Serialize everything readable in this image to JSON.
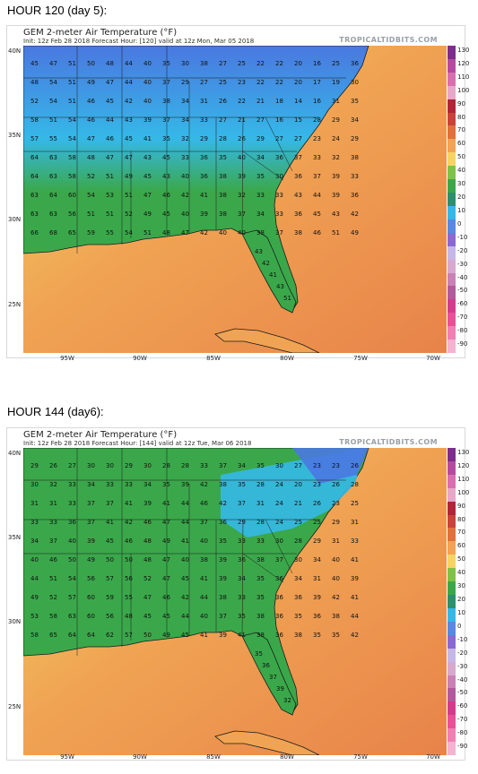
{
  "colors": {
    "ocean_warm": "#e8834a",
    "ocean_mid": "#f0a453",
    "coast_yellow": "#f1d565",
    "land_green": "#3aa84a",
    "cold_cyan": "#35b8e8",
    "cold_blue": "#4a78e0",
    "border": "#1a1a1a"
  },
  "colorbar": {
    "ticks": [
      "130",
      "120",
      "110",
      "100",
      "90",
      "80",
      "70",
      "60",
      "50",
      "40",
      "30",
      "20",
      "10",
      "0",
      "-10",
      "-20",
      "-30",
      "-40",
      "-50",
      "-60",
      "-70",
      "-80",
      "-90"
    ],
    "colors": [
      "#7d2d8d",
      "#b54ba0",
      "#d86fb0",
      "#e7a7c9",
      "#b02537",
      "#c9433a",
      "#e0703c",
      "#f2a353",
      "#f5d464",
      "#7fc249",
      "#3aa84a",
      "#2d8f6d",
      "#35b8e8",
      "#5a87e3",
      "#8a69d2",
      "#c5b8e8",
      "#d7a9cf",
      "#c981b6",
      "#b15a9e",
      "#d33c8d",
      "#e95098",
      "#f07fb4",
      "#f4b3d0"
    ]
  },
  "axes": {
    "y_labels": [
      "40N",
      "35N",
      "30N",
      "25N"
    ],
    "x_labels": [
      "95W",
      "90W",
      "85W",
      "80W",
      "75W",
      "70W"
    ]
  },
  "panels": [
    {
      "heading": "HOUR 120 (day 5):",
      "title": "GEM 2-meter Air Temperature (°F)",
      "subtitle": "Init: 12z Feb 28 2018   Forecast Hour: [120]   valid at 12z Mon, Mar 05 2018",
      "brand": "TROPICALTIDBITS.COM",
      "station_rows": [
        [
          "45",
          "47",
          "51",
          "50",
          "48",
          "44",
          "40",
          "35",
          "30",
          "38",
          "27",
          "25",
          "22",
          "22",
          "20",
          "16",
          "25",
          "36"
        ],
        [
          "48",
          "54",
          "51",
          "49",
          "47",
          "44",
          "40",
          "37",
          "29",
          "27",
          "25",
          "23",
          "22",
          "22",
          "20",
          "17",
          "19",
          "30"
        ],
        [
          "52",
          "54",
          "51",
          "46",
          "45",
          "42",
          "40",
          "38",
          "34",
          "31",
          "26",
          "22",
          "21",
          "18",
          "14",
          "16",
          "31",
          "35"
        ],
        [
          "58",
          "51",
          "54",
          "46",
          "44",
          "43",
          "39",
          "37",
          "34",
          "33",
          "27",
          "21",
          "27",
          "16",
          "15",
          "28",
          "29",
          "34"
        ],
        [
          "57",
          "55",
          "54",
          "47",
          "46",
          "45",
          "41",
          "35",
          "32",
          "29",
          "28",
          "26",
          "29",
          "27",
          "27",
          "23",
          "24",
          "29"
        ],
        [
          "64",
          "63",
          "58",
          "48",
          "47",
          "47",
          "43",
          "45",
          "33",
          "36",
          "35",
          "40",
          "34",
          "36",
          "37",
          "33",
          "32",
          "38"
        ],
        [
          "64",
          "63",
          "58",
          "52",
          "51",
          "49",
          "45",
          "43",
          "40",
          "36",
          "38",
          "39",
          "35",
          "30",
          "36",
          "37",
          "39",
          "33"
        ],
        [
          "63",
          "64",
          "60",
          "54",
          "53",
          "51",
          "47",
          "46",
          "42",
          "41",
          "38",
          "32",
          "33",
          "33",
          "43",
          "44",
          "39",
          "36"
        ],
        [
          "63",
          "63",
          "56",
          "51",
          "51",
          "52",
          "49",
          "45",
          "40",
          "39",
          "38",
          "37",
          "34",
          "33",
          "36",
          "45",
          "43",
          "42"
        ],
        [
          "66",
          "68",
          "65",
          "59",
          "55",
          "54",
          "51",
          "48",
          "47",
          "42",
          "40",
          "40",
          "38",
          "37",
          "38",
          "46",
          "51",
          "49"
        ]
      ],
      "florida_labels": [
        "43",
        "42",
        "41",
        "43",
        "51"
      ]
    },
    {
      "heading": "HOUR 144 (day6):",
      "title": "GEM 2-meter Air Temperature (°F)",
      "subtitle": "Init: 12z Feb 28 2018   Forecast Hour: [144]   valid at 12z Tue, Mar 06 2018",
      "brand": "TROPICALTIDBITS.COM",
      "station_rows": [
        [
          "29",
          "26",
          "27",
          "30",
          "30",
          "29",
          "30",
          "28",
          "28",
          "33",
          "37",
          "34",
          "35",
          "30",
          "27",
          "23",
          "23",
          "26"
        ],
        [
          "30",
          "32",
          "33",
          "34",
          "33",
          "33",
          "34",
          "35",
          "39",
          "42",
          "38",
          "35",
          "28",
          "24",
          "20",
          "23",
          "26",
          "28"
        ],
        [
          "31",
          "31",
          "33",
          "37",
          "37",
          "41",
          "39",
          "41",
          "44",
          "46",
          "42",
          "37",
          "31",
          "24",
          "21",
          "26",
          "23",
          "25"
        ],
        [
          "33",
          "33",
          "36",
          "37",
          "41",
          "42",
          "46",
          "47",
          "44",
          "37",
          "36",
          "29",
          "28",
          "24",
          "25",
          "25",
          "29",
          "31"
        ],
        [
          "34",
          "37",
          "40",
          "39",
          "45",
          "46",
          "48",
          "49",
          "41",
          "40",
          "35",
          "33",
          "33",
          "30",
          "28",
          "29",
          "31",
          "33"
        ],
        [
          "40",
          "46",
          "50",
          "49",
          "50",
          "50",
          "48",
          "47",
          "40",
          "38",
          "39",
          "36",
          "38",
          "37",
          "30",
          "34",
          "40",
          "41"
        ],
        [
          "44",
          "51",
          "54",
          "56",
          "57",
          "56",
          "52",
          "47",
          "45",
          "41",
          "39",
          "34",
          "35",
          "36",
          "34",
          "31",
          "40",
          "39"
        ],
        [
          "49",
          "52",
          "57",
          "60",
          "59",
          "55",
          "47",
          "46",
          "42",
          "44",
          "38",
          "33",
          "35",
          "36",
          "36",
          "39",
          "42",
          "41"
        ],
        [
          "53",
          "58",
          "63",
          "60",
          "56",
          "48",
          "45",
          "45",
          "44",
          "40",
          "37",
          "35",
          "38",
          "36",
          "35",
          "36",
          "38",
          "44"
        ],
        [
          "58",
          "65",
          "64",
          "64",
          "62",
          "57",
          "50",
          "49",
          "45",
          "41",
          "39",
          "41",
          "38",
          "36",
          "38",
          "35",
          "35",
          "42"
        ]
      ],
      "florida_labels": [
        "35",
        "36",
        "37",
        "39",
        "32"
      ]
    }
  ]
}
